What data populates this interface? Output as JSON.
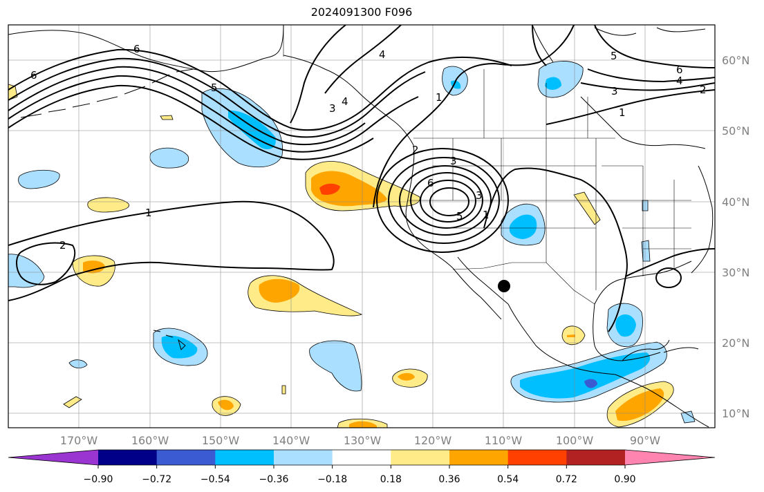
{
  "title": "2024091300 F096",
  "lon_labels": [
    "170°W",
    "160°W",
    "150°W",
    "140°W",
    "130°W",
    "120°W",
    "110°W",
    "100°W",
    "90°W"
  ],
  "lat_labels": [
    "60°N",
    "50°N",
    "40°N",
    "30°N",
    "20°N",
    "10°N"
  ],
  "colorbar": {
    "ticks": [
      "−0.90",
      "−0.72",
      "−0.54",
      "−0.36",
      "−0.18",
      "0.18",
      "0.36",
      "0.54",
      "0.72",
      "0.90"
    ],
    "colors": [
      "#9b35d2",
      "#000088",
      "#3a5bd1",
      "#00bfff",
      "#abdfff",
      "#ffffff",
      "#ffeb87",
      "#ffa500",
      "#ff4000",
      "#b22222",
      "#ff85b0"
    ]
  },
  "contour_labels": [
    "6",
    "6",
    "5",
    "5",
    "4",
    "4",
    "4",
    "3",
    "3",
    "3",
    "3",
    "2",
    "2",
    "2",
    "1",
    "1",
    "1",
    "1",
    "6",
    "6",
    "5"
  ],
  "marker": "filled-circle"
}
